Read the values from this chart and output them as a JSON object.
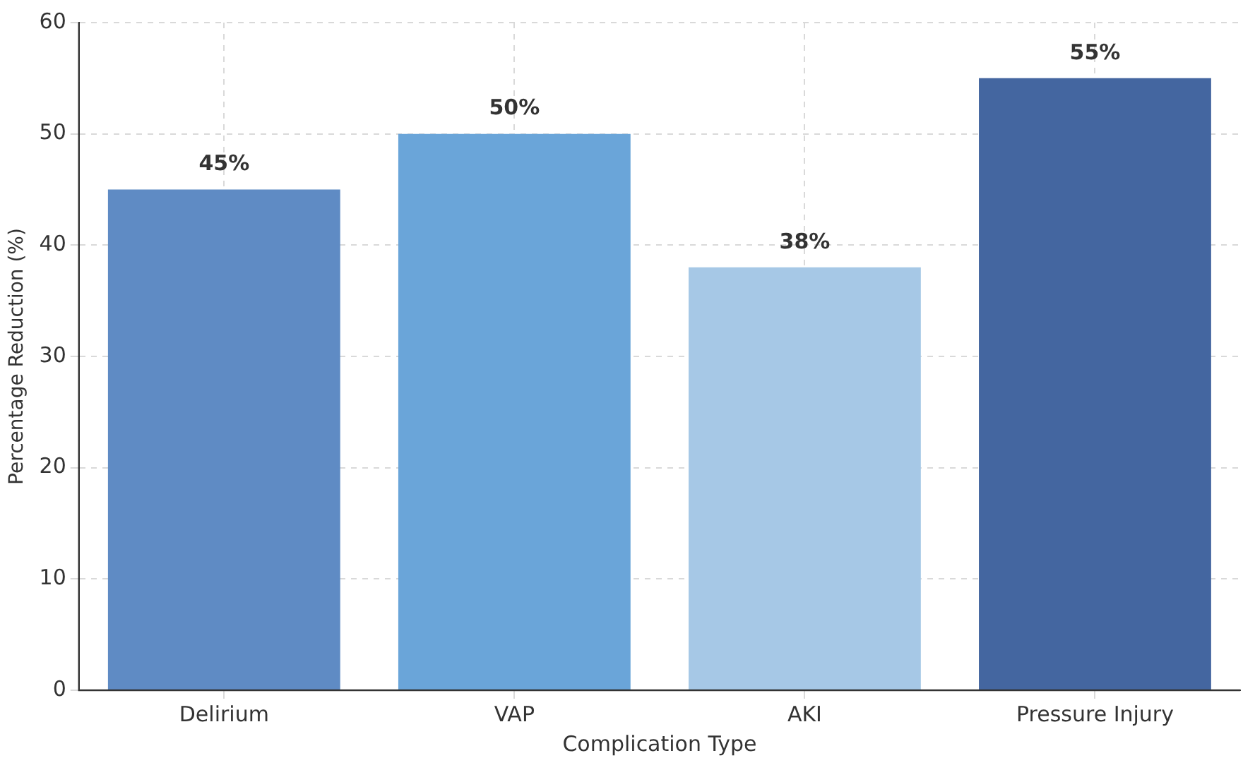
{
  "chart_data": {
    "type": "bar",
    "xlabel": "Complication Type",
    "ylabel": "Percentage Reduction (%)",
    "categories": [
      "Delirium",
      "VAP",
      "AKI",
      "Pressure Injury"
    ],
    "values": [
      45,
      50,
      38,
      55
    ],
    "colors": [
      "#5f8bc4",
      "#6aa5d9",
      "#a6c8e6",
      "#4466a0"
    ],
    "value_labels": [
      "45%",
      "50%",
      "38%",
      "55%"
    ],
    "ylim": [
      0,
      60
    ],
    "yticks": [
      0,
      10,
      20,
      30,
      40,
      50,
      60
    ],
    "grid": true
  }
}
